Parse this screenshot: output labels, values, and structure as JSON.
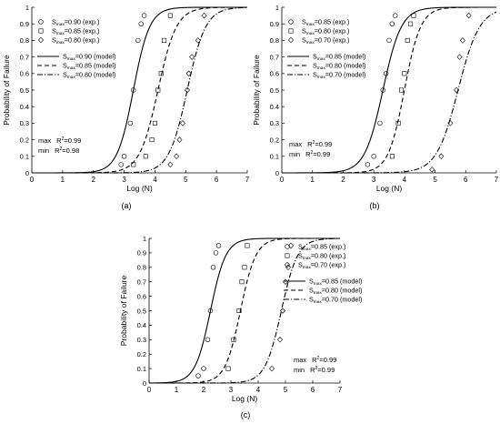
{
  "chart_data": [
    {
      "type": "line",
      "panel_label": "(a)",
      "xlabel": "Log (N)",
      "ylabel": "Probability of Failure",
      "xlim": [
        0,
        7
      ],
      "ylim": [
        0,
        1
      ],
      "x_ticks": [
        "0",
        "1",
        "2",
        "3",
        "4",
        "5",
        "6",
        "7"
      ],
      "y_ticks": [
        "0",
        "0.1",
        "0.2",
        "0.3",
        "0.4",
        "0.5",
        "0.6",
        "0.7",
        "0.8",
        "0.9",
        "1"
      ],
      "grid": false,
      "legend_position": "top-left",
      "series": [
        {
          "name": "S_max=0.90 (exp.)",
          "label_main": "S",
          "label_sub": "max",
          "label_rest": "=0.90 (exp.)",
          "kind": "scatter",
          "marker": "circle",
          "x": [
            2.9,
            3.0,
            3.2,
            3.3,
            3.45,
            3.55,
            3.65
          ],
          "y": [
            0.05,
            0.1,
            0.3,
            0.5,
            0.8,
            0.9,
            0.95
          ]
        },
        {
          "name": "S_max=0.85 (exp.)",
          "label_main": "S",
          "label_sub": "max",
          "label_rest": "=0.85 (exp.)",
          "kind": "scatter",
          "marker": "square",
          "x": [
            3.3,
            3.7,
            3.9,
            4.0,
            4.1,
            4.2,
            4.3,
            4.5
          ],
          "y": [
            0.05,
            0.1,
            0.2,
            0.3,
            0.5,
            0.6,
            0.8,
            0.95
          ]
        },
        {
          "name": "S_max=0.80 (exp.)",
          "label_main": "S",
          "label_sub": "max",
          "label_rest": "=0.80 (exp.)",
          "kind": "scatter",
          "marker": "diamond",
          "x": [
            4.5,
            4.7,
            4.8,
            4.9,
            5.05,
            5.1,
            5.2,
            5.4,
            5.6
          ],
          "y": [
            0.05,
            0.1,
            0.2,
            0.3,
            0.5,
            0.6,
            0.7,
            0.8,
            0.95
          ]
        },
        {
          "name": "S_max=0.90 (model)",
          "label_main": "S",
          "label_sub": "max",
          "label_rest": "=0.90 (model)",
          "kind": "line",
          "dash": "solid",
          "mu": 3.3,
          "s": 0.15
        },
        {
          "name": "S_max=0.85 (model)",
          "label_main": "S",
          "label_sub": "max",
          "label_rest": "=0.85 (model)",
          "kind": "line",
          "dash": "dashed",
          "mu": 4.1,
          "s": 0.17
        },
        {
          "name": "S_max=0.80 (model)",
          "label_main": "S",
          "label_sub": "max",
          "label_rest": "=0.80 (model)",
          "kind": "line",
          "dash": "dashdot",
          "mu": 5.05,
          "s": 0.17
        }
      ],
      "annotations": [
        {
          "label": "max",
          "r2_main": "R",
          "r2_sup": "2",
          "value": "=0.99"
        },
        {
          "label": "min",
          "r2_main": "R",
          "r2_sup": "2",
          "value": "=0.98"
        }
      ]
    },
    {
      "type": "line",
      "panel_label": "(b)",
      "xlabel": "Log (N)",
      "ylabel": "Probability of Failure",
      "xlim": [
        0,
        7
      ],
      "ylim": [
        0,
        1
      ],
      "x_ticks": [
        "0",
        "1",
        "2",
        "3",
        "4",
        "5",
        "6",
        "7"
      ],
      "y_ticks": [
        "0",
        "0.1",
        "0.2",
        "0.3",
        "0.4",
        "0.5",
        "0.6",
        "0.7",
        "0.8",
        "0.9",
        "1"
      ],
      "grid": false,
      "legend_position": "top-left",
      "series": [
        {
          "name": "S_max=0.85 (exp.)",
          "label_main": "S",
          "label_sub": "max",
          "label_rest": "=0.85 (exp.)",
          "kind": "scatter",
          "marker": "circle",
          "x": [
            2.8,
            3.0,
            3.2,
            3.3,
            3.4,
            3.5,
            3.6,
            3.7
          ],
          "y": [
            0.05,
            0.1,
            0.3,
            0.5,
            0.6,
            0.8,
            0.9,
            0.95
          ]
        },
        {
          "name": "S_max=0.80 (exp.)",
          "label_main": "S",
          "label_sub": "max",
          "label_rest": "=0.80 (exp.)",
          "kind": "scatter",
          "marker": "square",
          "x": [
            3.6,
            3.8,
            3.9,
            4.0,
            4.1,
            4.2,
            4.3
          ],
          "y": [
            0.1,
            0.3,
            0.5,
            0.6,
            0.8,
            0.9,
            0.95
          ]
        },
        {
          "name": "S_max=0.70 (exp.)",
          "label_main": "S",
          "label_sub": "max",
          "label_rest": "=0.70 (exp.)",
          "kind": "scatter",
          "marker": "diamond",
          "x": [
            4.9,
            5.2,
            5.5,
            5.7,
            5.8,
            5.9,
            6.1
          ],
          "y": [
            0.02,
            0.1,
            0.3,
            0.5,
            0.7,
            0.8,
            0.95
          ]
        },
        {
          "name": "S_max=0.85 (model)",
          "label_main": "S",
          "label_sub": "max",
          "label_rest": "=0.85 (model)",
          "kind": "line",
          "dash": "solid",
          "mu": 3.3,
          "s": 0.17
        },
        {
          "name": "S_max=0.80 (model)",
          "label_main": "S",
          "label_sub": "max",
          "label_rest": "=0.80 (model)",
          "kind": "line",
          "dash": "dashed",
          "mu": 4.0,
          "s": 0.15
        },
        {
          "name": "S_max=0.70 (model)",
          "label_main": "S",
          "label_sub": "max",
          "label_rest": "=0.70 (model)",
          "kind": "line",
          "dash": "dashdot",
          "mu": 5.75,
          "s": 0.2
        }
      ],
      "annotations": [
        {
          "label": "max",
          "r2_main": "R",
          "r2_sup": "2",
          "value": "=0.99"
        },
        {
          "label": "min",
          "r2_main": "R",
          "r2_sup": "2",
          "value": "=0.99"
        }
      ]
    },
    {
      "type": "line",
      "panel_label": "(c)",
      "xlabel": "Log (N)",
      "ylabel": "Probability of Failure",
      "xlim": [
        0,
        7
      ],
      "ylim": [
        0,
        1
      ],
      "x_ticks": [
        "0",
        "1",
        "2",
        "3",
        "4",
        "5",
        "6",
        "7"
      ],
      "y_ticks": [
        "0",
        "0.1",
        "0.2",
        "0.3",
        "0.4",
        "0.5",
        "0.6",
        "0.7",
        "0.8",
        "0.9",
        "1"
      ],
      "grid": false,
      "legend_position": "top-right",
      "series": [
        {
          "name": "S_max=0.85 (exp.)",
          "label_main": "S",
          "label_sub": "max",
          "label_rest": "=0.85 (exp.)",
          "kind": "scatter",
          "marker": "circle",
          "x": [
            1.8,
            2.0,
            2.15,
            2.25,
            2.35,
            2.45,
            2.55
          ],
          "y": [
            0.05,
            0.1,
            0.3,
            0.5,
            0.8,
            0.9,
            0.95
          ]
        },
        {
          "name": "S_max=0.80 (exp.)",
          "label_main": "S",
          "label_sub": "max",
          "label_rest": "=0.80 (exp.)",
          "kind": "scatter",
          "marker": "square",
          "x": [
            2.9,
            3.1,
            3.3,
            3.4,
            3.5,
            3.6
          ],
          "y": [
            0.1,
            0.3,
            0.5,
            0.7,
            0.8,
            0.95
          ]
        },
        {
          "name": "S_max=0.70 (exp.)",
          "label_main": "S",
          "label_sub": "max",
          "label_rest": "=0.70 (exp.)",
          "kind": "scatter",
          "marker": "diamond",
          "x": [
            4.5,
            4.8,
            4.9,
            5.0,
            5.1,
            5.2
          ],
          "y": [
            0.1,
            0.3,
            0.5,
            0.7,
            0.8,
            0.95
          ]
        },
        {
          "name": "S_max=0.85 (model)",
          "label_main": "S",
          "label_sub": "max",
          "label_rest": "=0.85 (model)",
          "kind": "line",
          "dash": "solid",
          "mu": 2.25,
          "s": 0.16
        },
        {
          "name": "S_max=0.80 (model)",
          "label_main": "S",
          "label_sub": "max",
          "label_rest": "=0.80 (model)",
          "kind": "line",
          "dash": "dashed",
          "mu": 3.35,
          "s": 0.16
        },
        {
          "name": "S_max=0.70 (model)",
          "label_main": "S",
          "label_sub": "max",
          "label_rest": "=0.70 (model)",
          "kind": "line",
          "dash": "dashdot",
          "mu": 4.85,
          "s": 0.17
        }
      ],
      "annotations": [
        {
          "label": "max",
          "r2_main": "R",
          "r2_sup": "2",
          "value": "=0.99"
        },
        {
          "label": "min",
          "r2_main": "R",
          "r2_sup": "2",
          "value": "=0.99"
        }
      ]
    }
  ]
}
